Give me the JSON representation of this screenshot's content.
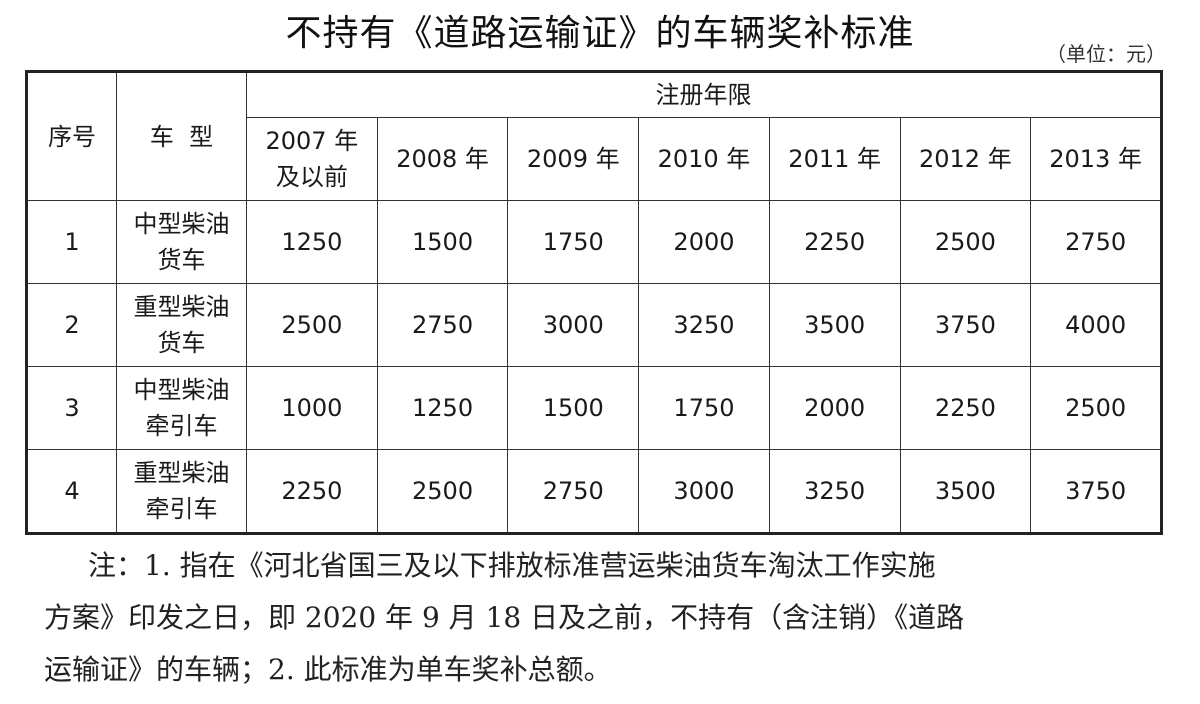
{
  "title": "不持有《道路运输证》的车辆奖补标准",
  "unit": "（单位：元）",
  "table": {
    "col_seq": "序号",
    "col_type": "车  型",
    "group_header": "注册年限",
    "years": [
      [
        "2007 年",
        "及以前"
      ],
      [
        "2008 年"
      ],
      [
        "2009 年"
      ],
      [
        "2010 年"
      ],
      [
        "2011 年"
      ],
      [
        "2012 年"
      ],
      [
        "2013 年"
      ]
    ],
    "rows": [
      {
        "seq": "1",
        "type": [
          "中型柴油",
          "货车"
        ],
        "values": [
          "1250",
          "1500",
          "1750",
          "2000",
          "2250",
          "2500",
          "2750"
        ]
      },
      {
        "seq": "2",
        "type": [
          "重型柴油",
          "货车"
        ],
        "values": [
          "2500",
          "2750",
          "3000",
          "3250",
          "3500",
          "3750",
          "4000"
        ]
      },
      {
        "seq": "3",
        "type": [
          "中型柴油",
          "牵引车"
        ],
        "values": [
          "1000",
          "1250",
          "1500",
          "1750",
          "2000",
          "2250",
          "2500"
        ]
      },
      {
        "seq": "4",
        "type": [
          "重型柴油",
          "牵引车"
        ],
        "values": [
          "2250",
          "2500",
          "2750",
          "3000",
          "3250",
          "3500",
          "3750"
        ]
      }
    ]
  },
  "note": {
    "lines": [
      "注：1. 指在《河北省国三及以下排放标准营运柴油货车淘汰工作实施",
      "方案》印发之日，即 2020 年 9 月 18 日及之前，不持有（含注销）《道路",
      "运输证》的车辆；2. 此标准为单车奖补总额。"
    ]
  }
}
